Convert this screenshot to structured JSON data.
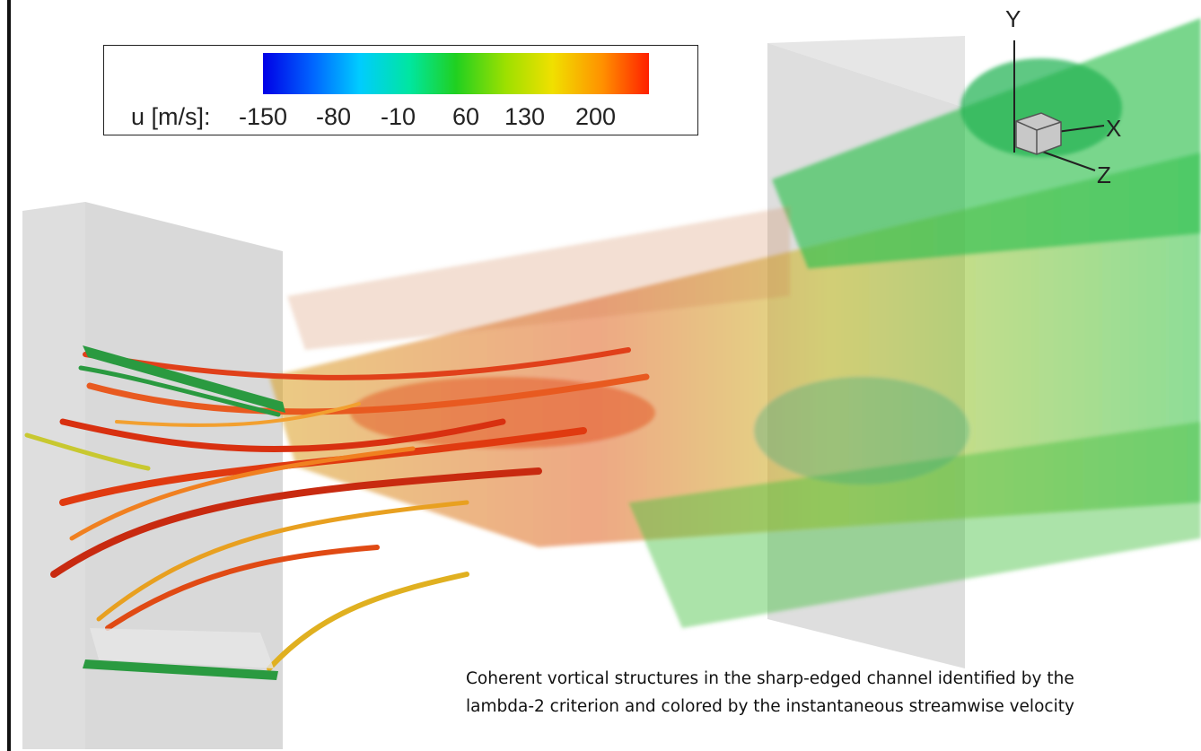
{
  "legend": {
    "variable_label": "u [m/s]:",
    "ticks": [
      "-150",
      "-80",
      "-10",
      "60",
      "130",
      "200"
    ],
    "colormap": [
      "#0000e6",
      "#0066ff",
      "#00ccff",
      "#00e6a0",
      "#20d020",
      "#9ee000",
      "#f0e000",
      "#ff9000",
      "#ff2000"
    ]
  },
  "axes_triad": {
    "x_label": "X",
    "y_label": "Y",
    "z_label": "Z"
  },
  "caption": {
    "line1": "Coherent vortical structures in the sharp-edged channel identified by the",
    "line2": "lambda-2 criterion and colored by the instantaneous streamwise velocity"
  }
}
